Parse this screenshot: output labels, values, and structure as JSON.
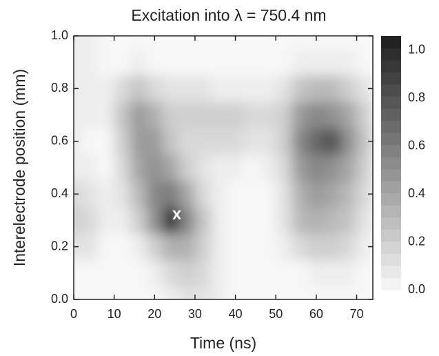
{
  "chart_data": {
    "type": "contour",
    "title": "Excitation into λ = 750.4 nm",
    "x_label": "Time (ns)",
    "y_label": "Interelectrode position (mm)",
    "x": [
      0,
      4,
      8,
      12,
      16,
      20,
      24,
      28,
      32,
      36,
      40,
      44,
      48,
      52,
      56,
      60,
      64,
      68,
      72
    ],
    "y": [
      0,
      0.1,
      0.2,
      0.3,
      0.4,
      0.5,
      0.6,
      0.7,
      0.8,
      0.9,
      1.0
    ],
    "z": [
      [
        0,
        0,
        0,
        0,
        0,
        0,
        0.05,
        0.1,
        0.1,
        0.05,
        0,
        0,
        0,
        0,
        0,
        0,
        0,
        0,
        0
      ],
      [
        0,
        0,
        0,
        0,
        0,
        0.05,
        0.15,
        0.2,
        0.15,
        0.05,
        0,
        0,
        0,
        0,
        0,
        0.05,
        0.05,
        0.05,
        0
      ],
      [
        0.1,
        0.1,
        0,
        0,
        0.05,
        0.2,
        0.35,
        0.35,
        0.2,
        0.05,
        0,
        0,
        0,
        0.05,
        0.15,
        0.2,
        0.2,
        0.15,
        0.05
      ],
      [
        0.2,
        0.15,
        0.05,
        0.05,
        0.2,
        0.5,
        0.95,
        0.55,
        0.25,
        0.05,
        0,
        0,
        0,
        0.1,
        0.3,
        0.35,
        0.3,
        0.25,
        0.1
      ],
      [
        0.15,
        0.1,
        0.05,
        0.1,
        0.3,
        0.55,
        0.6,
        0.4,
        0.15,
        0.05,
        0,
        0,
        0,
        0.1,
        0.35,
        0.45,
        0.4,
        0.3,
        0.15
      ],
      [
        0.05,
        0.05,
        0,
        0.15,
        0.4,
        0.5,
        0.4,
        0.2,
        0.1,
        0.05,
        0.05,
        0,
        0.05,
        0.15,
        0.45,
        0.55,
        0.5,
        0.4,
        0.2
      ],
      [
        0.05,
        0,
        0,
        0.2,
        0.45,
        0.45,
        0.25,
        0.15,
        0.15,
        0.15,
        0.15,
        0.1,
        0.1,
        0.2,
        0.55,
        0.7,
        0.8,
        0.5,
        0.25
      ],
      [
        0.05,
        0.05,
        0.05,
        0.25,
        0.45,
        0.35,
        0.2,
        0.2,
        0.2,
        0.2,
        0.2,
        0.15,
        0.15,
        0.2,
        0.45,
        0.55,
        0.5,
        0.4,
        0.2
      ],
      [
        0.05,
        0.05,
        0.05,
        0.15,
        0.25,
        0.15,
        0.1,
        0.1,
        0.1,
        0.05,
        0.05,
        0.05,
        0.05,
        0.1,
        0.25,
        0.3,
        0.3,
        0.2,
        0.1
      ],
      [
        0.05,
        0.05,
        0,
        0,
        0.05,
        0,
        0,
        0,
        0,
        0,
        0,
        0,
        0,
        0,
        0.05,
        0.05,
        0.05,
        0.05,
        0
      ],
      [
        0.05,
        0.05,
        0,
        0,
        0,
        0,
        0,
        0,
        0,
        0,
        0,
        0,
        0,
        0,
        0,
        0,
        0,
        0,
        0
      ]
    ],
    "xlim": [
      0,
      74
    ],
    "xticks": [
      0,
      10,
      20,
      30,
      40,
      50,
      60,
      70
    ],
    "ylim": [
      0,
      1
    ],
    "yticks": [
      {
        "value": 0,
        "label": "0.0"
      },
      {
        "value": 0.2,
        "label": "0.2"
      },
      {
        "value": 0.4,
        "label": "0.4"
      },
      {
        "value": 0.6,
        "label": "0.6"
      },
      {
        "value": 0.8,
        "label": "0.8"
      },
      {
        "value": 1,
        "label": "1.0"
      }
    ],
    "zlim": [
      0,
      1.06
    ],
    "zticks": [
      {
        "value": 0,
        "label": "0.0"
      },
      {
        "value": 0.2,
        "label": "0.2"
      },
      {
        "value": 0.4,
        "label": "0.4"
      },
      {
        "value": 0.6,
        "label": "0.6"
      },
      {
        "value": 0.8,
        "label": "0.8"
      },
      {
        "value": 1,
        "label": "1.0"
      }
    ],
    "annotation": {
      "text": "x",
      "x": 25.5,
      "y": 0.32
    }
  }
}
